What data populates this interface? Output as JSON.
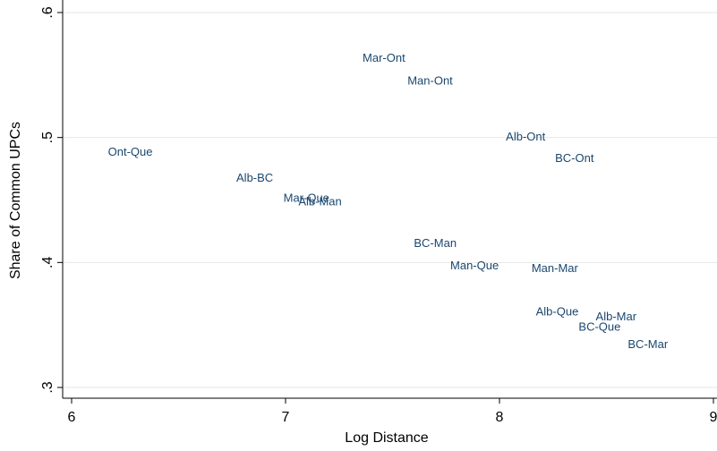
{
  "chart_data": {
    "type": "scatter",
    "xlabel": "Log Distance",
    "ylabel": "Share of Common UPCs",
    "labels": [
      "Ont-Que",
      "Mar-Ont",
      "Man-Ont",
      "Alb-Ont",
      "BC-Ont",
      "Alb-BC",
      "Mar-Que",
      "Alb-Man",
      "BC-Man",
      "Man-Que",
      "Man-Mar",
      "Alb-Que",
      "Alb-Mar",
      "BC-Que",
      "BC-Mar"
    ],
    "x": [
      6.17,
      7.36,
      7.57,
      8.03,
      8.26,
      6.77,
      6.99,
      7.06,
      7.6,
      7.77,
      8.15,
      8.17,
      8.45,
      8.37,
      8.6
    ],
    "y": [
      0.488,
      0.563,
      0.545,
      0.5,
      0.483,
      0.467,
      0.451,
      0.448,
      0.415,
      0.397,
      0.395,
      0.36,
      0.356,
      0.348,
      0.334
    ],
    "color": "#1a476f",
    "xlim": [
      6,
      9
    ],
    "xticks": [
      6,
      7,
      8,
      9
    ],
    "ylim": [
      0.3,
      0.6
    ],
    "yticks": [
      {
        "value": 0.3,
        "label": ".3"
      },
      {
        "value": 0.4,
        "label": ".4"
      },
      {
        "value": 0.5,
        "label": ".5"
      },
      {
        "value": 0.6,
        "label": ".6"
      }
    ],
    "grid": true
  }
}
